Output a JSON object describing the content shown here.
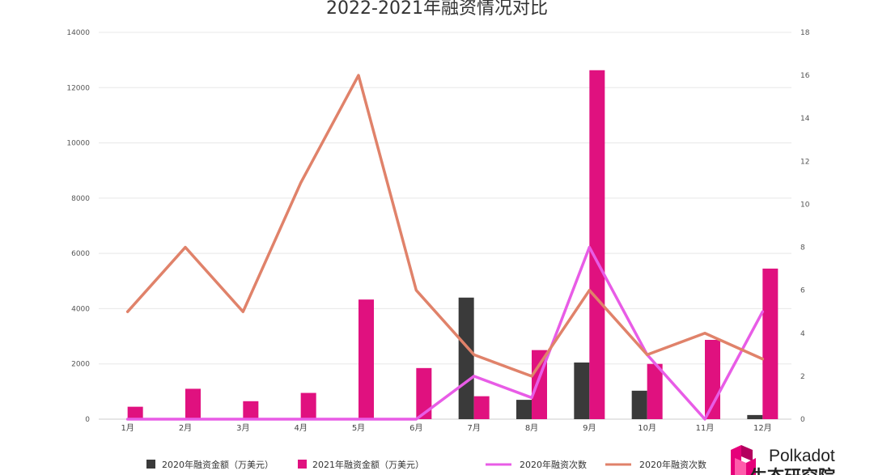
{
  "chart_data": {
    "type": "bar",
    "title": "2022-2021年融资情况对比",
    "categories": [
      "1月",
      "2月",
      "3月",
      "4月",
      "5月",
      "6月",
      "7月",
      "8月",
      "9月",
      "10月",
      "11月",
      "12月"
    ],
    "y_left": {
      "ylim": [
        0,
        14000
      ],
      "ticks": [
        "0",
        "2000",
        "4000",
        "6000",
        "8000",
        "10000",
        "12000",
        "14000"
      ]
    },
    "y_right": {
      "ylim": [
        0,
        18
      ],
      "ticks": [
        "0",
        "2",
        "4",
        "6",
        "8",
        "10",
        "12",
        "14",
        "16",
        "18"
      ]
    },
    "bar_series": [
      {
        "name": "2020年融资金额（万美元）",
        "color": "#3a3a3a",
        "axis": "left",
        "values": [
          0,
          0,
          0,
          0,
          0,
          0,
          4400,
          700,
          2050,
          1030,
          0,
          150
        ]
      },
      {
        "name": "2021年融资金额（万美元）",
        "color": "#e0117f",
        "axis": "left",
        "values": [
          450,
          1100,
          650,
          950,
          4330,
          1850,
          830,
          2500,
          12630,
          2000,
          2870,
          5450
        ]
      }
    ],
    "line_series": [
      {
        "name": "2020年融资次数",
        "color": "#e85ce6",
        "axis": "right",
        "values": [
          0,
          0,
          0,
          0,
          0,
          0,
          2,
          1,
          8,
          3,
          0,
          5
        ]
      },
      {
        "name": "2020年融资次数",
        "color": "#e0826a",
        "axis": "right",
        "values": [
          5,
          8,
          5,
          11,
          16,
          6,
          3,
          2,
          6,
          3,
          4,
          2.8
        ]
      }
    ],
    "grid": true,
    "legend_position": "bottom"
  },
  "logo": {
    "name": "Polkadot",
    "subtitle": "生态研究院",
    "colors": [
      "#e6007a",
      "#b3005e",
      "#ff5cab"
    ]
  }
}
